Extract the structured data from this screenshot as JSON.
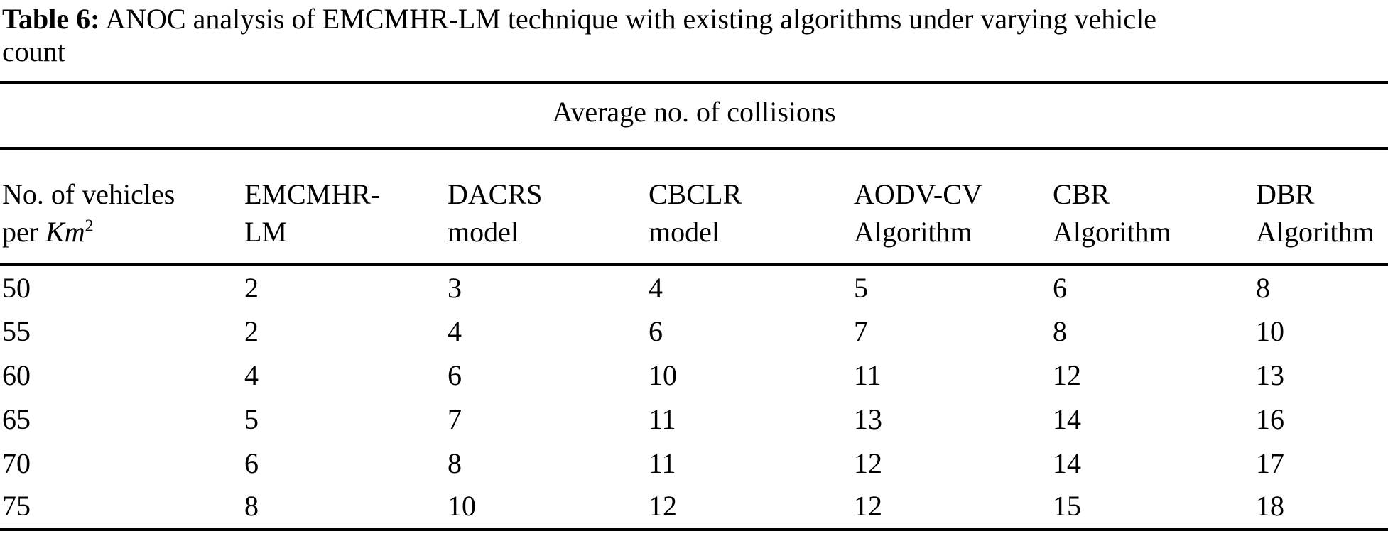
{
  "caption": {
    "label": "Table 6:",
    "line1": "ANOC analysis of EMCMHR-LM technique with existing algorithms under varying vehicle",
    "line2": "count"
  },
  "table": {
    "span_header": "Average no. of collisions",
    "col1_header": {
      "line1": "No. of vehicles",
      "line2_prefix": "per ",
      "line2_italic": "Km",
      "line2_sup": "2"
    },
    "columns": [
      {
        "line1": "EMCMHR-",
        "line2": "LM"
      },
      {
        "line1": "DACRS",
        "line2": "model"
      },
      {
        "line1": "CBCLR",
        "line2": "model"
      },
      {
        "line1": "AODV-CV",
        "line2": "Algorithm"
      },
      {
        "line1": "CBR",
        "line2": "Algorithm"
      },
      {
        "line1": "DBR",
        "line2": "Algorithm"
      }
    ],
    "rows": [
      {
        "vehicles": "50",
        "values": [
          "2",
          "3",
          "4",
          "5",
          "6",
          "8"
        ]
      },
      {
        "vehicles": "55",
        "values": [
          "2",
          "4",
          "6",
          "7",
          "8",
          "10"
        ]
      },
      {
        "vehicles": "60",
        "values": [
          "4",
          "6",
          "10",
          "11",
          "12",
          "13"
        ]
      },
      {
        "vehicles": "65",
        "values": [
          "5",
          "7",
          "11",
          "13",
          "14",
          "16"
        ]
      },
      {
        "vehicles": "70",
        "values": [
          "6",
          "8",
          "11",
          "12",
          "14",
          "17"
        ]
      },
      {
        "vehicles": "75",
        "values": [
          "8",
          "10",
          "12",
          "12",
          "15",
          "18"
        ]
      }
    ]
  },
  "colors": {
    "text": "#000000",
    "background": "#ffffff",
    "rule": "#000000"
  }
}
